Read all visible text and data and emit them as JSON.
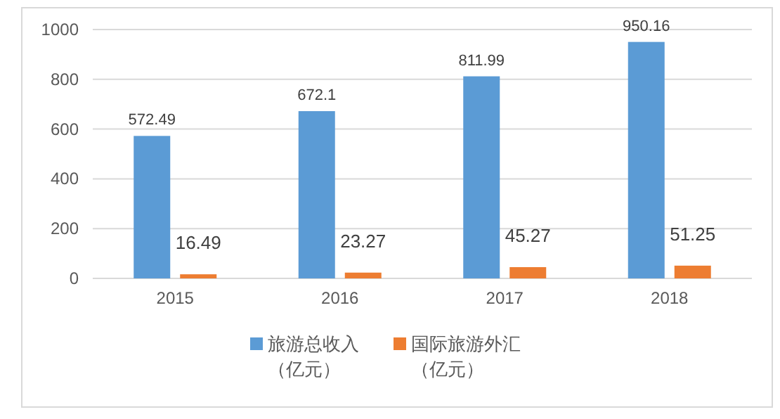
{
  "chart_data": {
    "type": "bar",
    "categories": [
      "2015",
      "2016",
      "2017",
      "2018"
    ],
    "series": [
      {
        "name": "旅游总收入（亿元）",
        "color": "#5b9bd5",
        "values": [
          572.49,
          672.1,
          811.99,
          950.16
        ]
      },
      {
        "name": "国际旅游外汇（亿元）",
        "color": "#ed7d31",
        "values": [
          16.49,
          23.27,
          45.27,
          51.25
        ]
      }
    ],
    "ylim": [
      0,
      1000
    ],
    "yticks": [
      0,
      200,
      400,
      600,
      800,
      1000
    ],
    "grid": "y",
    "legend": "bottom",
    "data_labels": true
  }
}
